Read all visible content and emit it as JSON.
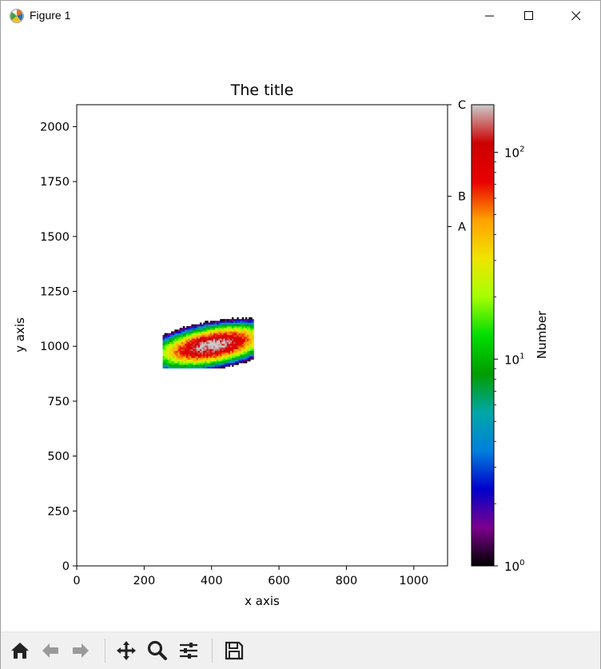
{
  "window": {
    "title": "Figure 1"
  },
  "chart_data": {
    "type": "heatmap",
    "title": "The title",
    "xlabel": "x axis",
    "ylabel": "y axis",
    "xlim": [
      0,
      1100
    ],
    "ylim": [
      0,
      2100
    ],
    "x_ticks": [
      0,
      200,
      400,
      600,
      800,
      1000
    ],
    "y_ticks": [
      0,
      250,
      500,
      750,
      1000,
      1250,
      1500,
      1750,
      2000
    ],
    "secondary_y_ticks": [
      {
        "value": 1545,
        "label": "A"
      },
      {
        "value": 1683,
        "label": "B"
      },
      {
        "value": 2100,
        "label": "C"
      }
    ],
    "density": {
      "center_x": 400,
      "center_y": 1000,
      "sigma_major": 72,
      "sigma_minor": 33,
      "angle_deg": 18,
      "peak_count": 170,
      "extent_x": [
        255,
        520
      ],
      "extent_y": [
        900,
        1130
      ]
    },
    "colorbar": {
      "label": "Number",
      "scale": "log",
      "range": [
        1,
        170
      ],
      "ticks": [
        {
          "value": 1,
          "base": "10",
          "exp": "0"
        },
        {
          "value": 10,
          "base": "10",
          "exp": "1"
        },
        {
          "value": 100,
          "base": "10",
          "exp": "2"
        }
      ],
      "colormap": "nipy_spectral",
      "colormap_stops": [
        "#000000",
        "#7c008d",
        "#0000cc",
        "#0080dd",
        "#00a7a6",
        "#009d00",
        "#00dd00",
        "#a5ff00",
        "#f0e400",
        "#ffa100",
        "#e80000",
        "#cc0000",
        "#cccccc"
      ]
    },
    "grid": false
  },
  "toolbar": {
    "icons": [
      "home-icon",
      "back-arrow-icon",
      "forward-arrow-icon",
      "pan-icon",
      "zoom-icon",
      "configure-subplots-icon",
      "save-icon"
    ]
  }
}
